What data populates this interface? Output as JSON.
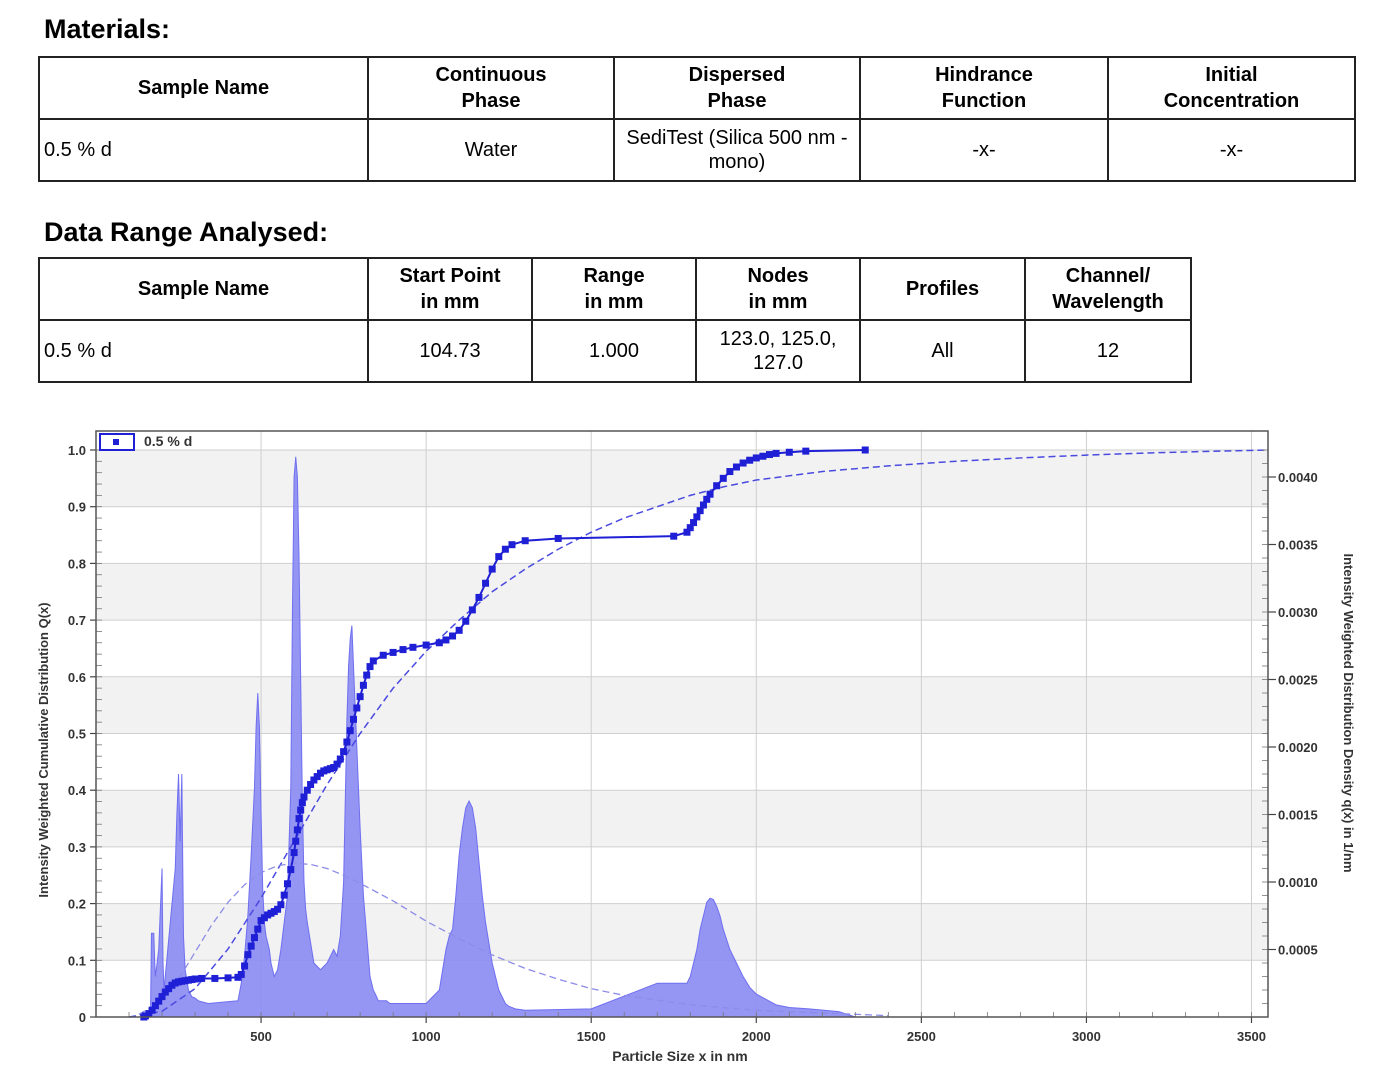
{
  "materials": {
    "title": "Materials:",
    "headers": [
      "Sample Name",
      "Continuous Phase",
      "Dispersed Phase",
      "Hindrance Function",
      "Initial Concentration"
    ],
    "row": [
      "0.5 % d",
      "Water",
      "SediTest (Silica 500 nm - mono)",
      "-x-",
      "-x-"
    ]
  },
  "range": {
    "title": "Data Range Analysed:",
    "headers": [
      "Sample Name",
      "Start Point in mm",
      "Range in mm",
      "Nodes in mm",
      "Profiles",
      "Channel/ Wavelength"
    ],
    "row": [
      "0.5 % d",
      "104.73",
      "1.000",
      "123.0, 125.0, 127.0",
      "All",
      "12"
    ]
  },
  "chart_data": {
    "type": "area",
    "legend": "0.5 % d",
    "legend_position": "top-left",
    "xlabel": "Particle Size x in nm",
    "ylabel": "Intensity Weighted Cumulative Distribution Q(x)",
    "y2label": "Intensity Weighted Distribution Density q(x) in 1/nm",
    "xlim": [
      0,
      3550
    ],
    "ylim": [
      0,
      1.0
    ],
    "y2lim": [
      0,
      0.0042
    ],
    "xticks": [
      "500",
      "1000",
      "1500",
      "2000",
      "2500",
      "3000",
      "3500"
    ],
    "yticks": [
      "0",
      "0.1",
      "0.2",
      "0.3",
      "0.4",
      "0.5",
      "0.6",
      "0.7",
      "0.8",
      "0.9",
      "1.0"
    ],
    "y2ticks": [
      "0.0005",
      "0.0010",
      "0.0015",
      "0.0020",
      "0.0025",
      "0.0030",
      "0.0035",
      "0.0040"
    ],
    "grid": true,
    "colors": {
      "series": "#1f1fd6",
      "fill": "#8c8cf2",
      "band": "#f2f2f2"
    },
    "density_q": {
      "x": [
        165,
        168,
        175,
        178,
        180,
        190,
        195,
        200,
        203,
        206,
        240,
        245,
        250,
        255,
        258,
        260,
        265,
        270,
        280,
        290,
        300,
        310,
        340,
        430,
        440,
        450,
        460,
        470,
        480,
        485,
        490,
        495,
        500,
        505,
        510,
        515,
        520,
        525,
        530,
        540,
        550,
        560,
        580,
        590,
        595,
        600,
        605,
        610,
        615,
        620,
        625,
        630,
        635,
        640,
        650,
        660,
        680,
        700,
        720,
        730,
        740,
        750,
        755,
        760,
        765,
        770,
        775,
        780,
        790,
        800,
        810,
        820,
        830,
        840,
        850,
        855,
        860,
        870,
        880,
        890,
        1000,
        1040,
        1050,
        1060,
        1070,
        1080,
        1090,
        1100,
        1110,
        1120,
        1130,
        1140,
        1150,
        1160,
        1170,
        1180,
        1190,
        1200,
        1210,
        1220,
        1230,
        1240,
        1250,
        1270,
        1300,
        1500,
        1700,
        1700,
        1790,
        1800,
        1810,
        1820,
        1830,
        1840,
        1850,
        1860,
        1870,
        1880,
        1890,
        1900,
        1920,
        1940,
        1960,
        1980,
        2000,
        2030,
        2060,
        2100,
        2160,
        2250,
        2300
      ],
      "q": [
        0,
        0.00062,
        0.00062,
        0.0004,
        0.0003,
        0.0005,
        0.0008,
        0.0011,
        0.0004,
        0.0002,
        0.0011,
        0.0015,
        0.0018,
        0.0013,
        0.0016,
        0.0018,
        0.0006,
        0.00035,
        0.0002,
        0.00015,
        0.00014,
        0.00012,
        0.0001,
        0.00012,
        0.00025,
        0.00045,
        0.00075,
        0.0012,
        0.0017,
        0.00215,
        0.0024,
        0.00215,
        0.0015,
        0.00095,
        0.0007,
        0.0006,
        0.00055,
        0.0005,
        0.0004,
        0.0003,
        0.00035,
        0.0005,
        0.0009,
        0.0017,
        0.003,
        0.004,
        0.00415,
        0.004,
        0.0034,
        0.0025,
        0.0016,
        0.001,
        0.0008,
        0.0007,
        0.00055,
        0.0004,
        0.00035,
        0.0004,
        0.0005,
        0.00045,
        0.0006,
        0.001,
        0.0016,
        0.0022,
        0.0026,
        0.0028,
        0.0029,
        0.0026,
        0.002,
        0.0014,
        0.0009,
        0.0006,
        0.0003,
        0.0002,
        0.00015,
        0.00012,
        0.00012,
        0.00012,
        0.00012,
        0.0001,
        0.0001,
        0.0002,
        0.00035,
        0.0005,
        0.0006,
        0.00065,
        0.0009,
        0.0012,
        0.0014,
        0.00155,
        0.0016,
        0.00155,
        0.0014,
        0.00115,
        0.0009,
        0.0007,
        0.00055,
        0.0004,
        0.0003,
        0.0002,
        0.00015,
        0.0001,
        8e-05,
        6e-05,
        5e-05,
        6e-05,
        0.00025,
        0.00025,
        0.00025,
        0.0003,
        0.0004,
        0.0005,
        0.00065,
        0.00075,
        0.00085,
        0.00088,
        0.00087,
        0.00082,
        0.00075,
        0.00065,
        0.0005,
        0.0004,
        0.0003,
        0.00022,
        0.00017,
        0.00013,
        9e-05,
        7e-05,
        6e-05,
        4e-05,
        0
      ]
    },
    "cumulative_Q": {
      "x": [
        145,
        150,
        160,
        170,
        180,
        190,
        200,
        210,
        220,
        230,
        240,
        250,
        260,
        270,
        280,
        290,
        300,
        320,
        360,
        400,
        430,
        440,
        450,
        460,
        470,
        480,
        490,
        500,
        510,
        520,
        530,
        540,
        550,
        560,
        570,
        580,
        590,
        600,
        605,
        610,
        615,
        620,
        625,
        630,
        640,
        650,
        660,
        670,
        680,
        690,
        700,
        710,
        720,
        730,
        740,
        750,
        760,
        770,
        780,
        790,
        800,
        810,
        820,
        830,
        840,
        870,
        900,
        930,
        960,
        1000,
        1040,
        1060,
        1080,
        1100,
        1120,
        1140,
        1160,
        1180,
        1200,
        1220,
        1240,
        1260,
        1300,
        1400,
        1750,
        1790,
        1800,
        1810,
        1820,
        1830,
        1840,
        1850,
        1860,
        1880,
        1900,
        1920,
        1940,
        1960,
        1980,
        2000,
        2020,
        2040,
        2060,
        2100,
        2150,
        2330
      ],
      "Q": [
        0,
        0.002,
        0.006,
        0.012,
        0.02,
        0.028,
        0.036,
        0.044,
        0.05,
        0.056,
        0.06,
        0.062,
        0.063,
        0.064,
        0.065,
        0.066,
        0.067,
        0.068,
        0.068,
        0.069,
        0.07,
        0.075,
        0.09,
        0.11,
        0.125,
        0.14,
        0.155,
        0.17,
        0.175,
        0.18,
        0.183,
        0.186,
        0.19,
        0.198,
        0.215,
        0.235,
        0.26,
        0.29,
        0.31,
        0.33,
        0.35,
        0.365,
        0.378,
        0.388,
        0.4,
        0.41,
        0.418,
        0.424,
        0.43,
        0.434,
        0.436,
        0.438,
        0.44,
        0.446,
        0.455,
        0.468,
        0.485,
        0.505,
        0.525,
        0.545,
        0.565,
        0.585,
        0.603,
        0.618,
        0.628,
        0.638,
        0.643,
        0.648,
        0.652,
        0.656,
        0.66,
        0.665,
        0.672,
        0.682,
        0.698,
        0.718,
        0.74,
        0.765,
        0.79,
        0.812,
        0.825,
        0.833,
        0.84,
        0.844,
        0.848,
        0.855,
        0.863,
        0.872,
        0.882,
        0.893,
        0.903,
        0.913,
        0.922,
        0.937,
        0.95,
        0.962,
        0.97,
        0.977,
        0.982,
        0.986,
        0.989,
        0.992,
        0.994,
        0.996,
        0.998,
        1.0
      ]
    },
    "fit_cumulative": {
      "x": [
        100,
        200,
        300,
        400,
        500,
        600,
        700,
        800,
        900,
        1000,
        1100,
        1200,
        1300,
        1400,
        1500,
        1600,
        1700,
        1800,
        1900,
        2000,
        2200,
        2400,
        2600,
        2800,
        3000,
        3200,
        3400,
        3550
      ],
      "Q": [
        0,
        0.01,
        0.05,
        0.12,
        0.21,
        0.31,
        0.41,
        0.5,
        0.58,
        0.645,
        0.7,
        0.75,
        0.79,
        0.825,
        0.855,
        0.88,
        0.9,
        0.92,
        0.935,
        0.947,
        0.962,
        0.972,
        0.98,
        0.986,
        0.991,
        0.995,
        0.998,
        1.0
      ]
    },
    "fit_density": {
      "x": [
        130,
        200,
        250,
        300,
        350,
        400,
        450,
        500,
        550,
        600,
        650,
        700,
        750,
        800,
        900,
        1000,
        1100,
        1200,
        1300,
        1400,
        1500,
        1600,
        1800,
        2000,
        2200,
        2400
      ],
      "q": [
        2e-05,
        0.00012,
        0.00028,
        0.00048,
        0.00068,
        0.00085,
        0.00098,
        0.00107,
        0.00112,
        0.00114,
        0.00113,
        0.0011,
        0.00105,
        0.00099,
        0.00086,
        0.00071,
        0.00058,
        0.00046,
        0.00036,
        0.00028,
        0.00021,
        0.00016,
        9e-05,
        5e-05,
        3e-05,
        1e-05
      ]
    }
  }
}
